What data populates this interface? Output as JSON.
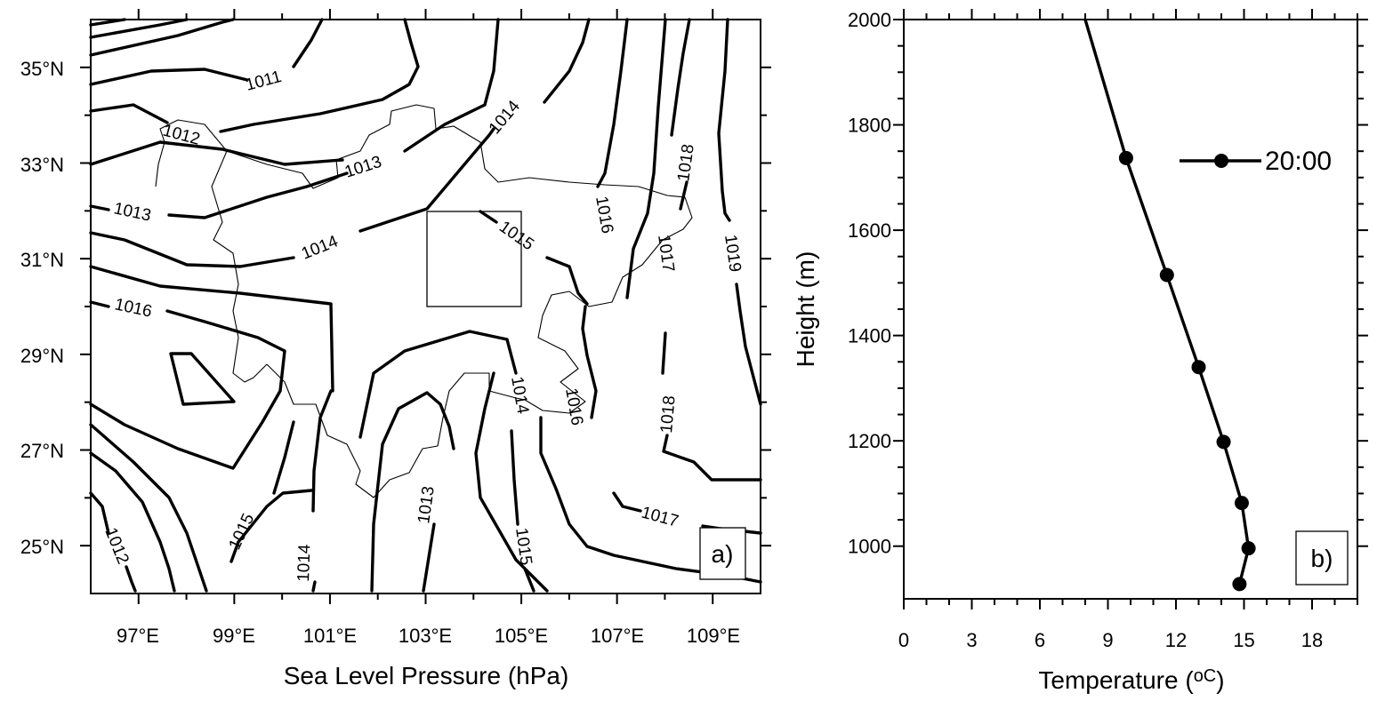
{
  "chart_data": [
    {
      "panel_label": "a)",
      "type": "contour",
      "xlabel": "Sea Level Pressure (hPa)",
      "x_ticks": [
        "97°E",
        "99°E",
        "101°E",
        "103°E",
        "105°E",
        "107°E",
        "109°E"
      ],
      "y_ticks": [
        "25°N",
        "27°N",
        "29°N",
        "31°N",
        "33°N",
        "35°N"
      ],
      "x_range": [
        96,
        110
      ],
      "y_range": [
        24,
        36
      ],
      "box": {
        "lon": [
          103,
          105
        ],
        "lat": [
          30,
          32
        ]
      },
      "contour_labels": [
        "1011",
        "1012",
        "1013",
        "1013",
        "1014",
        "1014",
        "1013",
        "1015",
        "1016",
        "1016",
        "1017",
        "1018",
        "1019",
        "1014",
        "1016",
        "1018",
        "1015",
        "1014",
        "1013",
        "1015",
        "1017",
        "1012"
      ]
    },
    {
      "panel_label": "b)",
      "type": "line",
      "xlabel": "Temperature (",
      "xlabel_unit": "oC",
      "xlabel_close": ")",
      "ylabel": "Height (m)",
      "xlim": [
        0,
        20
      ],
      "ylim": [
        900,
        2000
      ],
      "x_ticks": [
        0,
        3,
        6,
        9,
        12,
        15,
        18
      ],
      "y_ticks": [
        1000,
        1200,
        1400,
        1600,
        1800,
        2000
      ],
      "legend_placement": "top-right",
      "series": [
        {
          "name": "20:00",
          "line": [
            {
              "x": 8.0,
              "y": 2000
            },
            {
              "x": 9.8,
              "y": 1737
            },
            {
              "x": 11.6,
              "y": 1515
            },
            {
              "x": 13.0,
              "y": 1340
            },
            {
              "x": 14.1,
              "y": 1198
            },
            {
              "x": 14.9,
              "y": 1082
            },
            {
              "x": 15.2,
              "y": 996
            },
            {
              "x": 14.8,
              "y": 928
            }
          ],
          "markers": [
            {
              "x": 9.8,
              "y": 1737
            },
            {
              "x": 11.6,
              "y": 1515
            },
            {
              "x": 13.0,
              "y": 1340
            },
            {
              "x": 14.1,
              "y": 1198
            },
            {
              "x": 14.9,
              "y": 1082
            },
            {
              "x": 15.2,
              "y": 996
            },
            {
              "x": 14.8,
              "y": 928
            }
          ]
        }
      ]
    }
  ]
}
